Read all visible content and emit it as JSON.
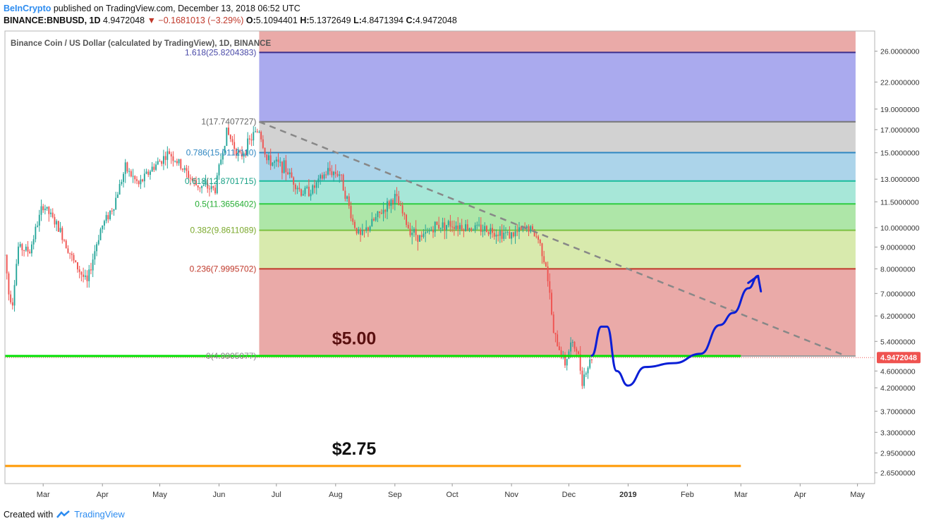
{
  "header": {
    "brand": "BeInCrypto",
    "published": "published on TradingView.com, December 13, 2018 06:52 UTC",
    "symbol": "BINANCE:BNBUSD, 1D",
    "last": "4.9472048",
    "change": "▼ −0.1681013 (−3.29%)",
    "o_label": "O:",
    "o": "5.1094401",
    "h_label": "H:",
    "h": "5.1372649",
    "l_label": "L:",
    "l": "4.8471394",
    "c_label": "C:",
    "c": "4.9472048"
  },
  "footer": {
    "created_with": "Created with",
    "brand": "TradingView"
  },
  "colors": {
    "up": "#26a69a",
    "down": "#ef5350",
    "trend": "#888888",
    "support_green": "#00e000",
    "support_orange": "#ff9800",
    "projection": "#0a1fd6",
    "price_tag": "#ef5350"
  },
  "chart_data": {
    "type": "candlestick",
    "title": "Binance Coin / US Dollar (calculated by TradingView), 1D, BINANCE",
    "y_scale": "log",
    "ylim": [
      2.5,
      29
    ],
    "y_ticks": [
      "26.0000000",
      "22.0000000",
      "19.0000000",
      "17.0000000",
      "15.0000000",
      "13.0000000",
      "11.5000000",
      "10.0000000",
      "9.0000000",
      "8.0000000",
      "7.0000000",
      "6.2000000",
      "5.4000000",
      "4.6000000",
      "4.2000000",
      "3.7000000",
      "3.3000000",
      "2.9500000",
      "2.6500000"
    ],
    "x_ticks": [
      "Mar",
      "Apr",
      "May",
      "Jun",
      "Jul",
      "Aug",
      "Sep",
      "Oct",
      "Nov",
      "Dec",
      "2019",
      "Feb",
      "Mar",
      "Apr",
      "May"
    ],
    "x_range": [
      "2018-02-09",
      "2019-05-10"
    ],
    "last_price_label": "4.9472048",
    "fib_start_date": "2018-06-22",
    "fib_end_date": "2019-04-30",
    "fib_levels": [
      {
        "label": "1.618(25.8204383)",
        "value": 25.82,
        "fill": "#aaaaee",
        "line": "#3a2d8c",
        "text_color": "#4a4aa8"
      },
      {
        "label": "1(17.7407727)",
        "value": 17.74,
        "fill": "#d2d2d2",
        "line": "#777777",
        "text_color": "#666666"
      },
      {
        "label": "0.786(15.0112110)",
        "value": 15.01,
        "fill": "#acd4ea",
        "line": "#2e86c1",
        "text_color": "#2e86c1"
      },
      {
        "label": "0.618(12.8701715)",
        "value": 12.87,
        "fill": "#a7e7d8",
        "line": "#1abc9c",
        "text_color": "#16a085"
      },
      {
        "label": "0.5(11.3656402)",
        "value": 11.37,
        "fill": "#aee6a8",
        "line": "#2ecc40",
        "text_color": "#27ae35"
      },
      {
        "label": "0.382(9.8611089)",
        "value": 9.86,
        "fill": "#d8eaad",
        "line": "#7bc142",
        "text_color": "#7aa82b"
      },
      {
        "label": "0.236(7.9995702)",
        "value": 8.0,
        "fill": "#eaaaa8",
        "line": "#c0392b",
        "text_color": "#c0392b"
      },
      {
        "label": "0(4.9905077)",
        "value": 4.99,
        "fill": "",
        "line": "#9e9e9e",
        "text_color": "#888888"
      }
    ],
    "top_band_fill": "#eaaaa8",
    "annotations": [
      {
        "text": "$5.00",
        "value": 5.0
      },
      {
        "text": "$2.75",
        "value": 2.75
      }
    ],
    "support_lines": [
      {
        "value": 4.99,
        "from": "2018-02-09",
        "to": "2019-03-01",
        "color": "#00e000"
      },
      {
        "value": 2.75,
        "from": "2018-02-09",
        "to": "2019-03-01",
        "color": "#ff9800"
      }
    ],
    "trendline": {
      "from": [
        "2018-06-22",
        17.74
      ],
      "to": [
        "2019-04-25",
        4.99
      ]
    },
    "projection_path": [
      [
        "2018-12-13",
        5.0
      ],
      [
        "2018-12-18",
        5.85
      ],
      [
        "2018-12-21",
        5.85
      ],
      [
        "2018-12-26",
        4.6
      ],
      [
        "2019-01-01",
        4.25
      ],
      [
        "2019-01-10",
        4.7
      ],
      [
        "2019-01-25",
        4.8
      ],
      [
        "2019-02-08",
        5.05
      ],
      [
        "2019-02-18",
        5.9
      ],
      [
        "2019-02-25",
        6.3
      ],
      [
        "2019-03-05",
        7.2
      ],
      [
        "2019-03-10",
        7.7
      ]
    ],
    "price_anchors": [
      [
        "2018-02-09",
        8.6
      ],
      [
        "2018-02-11",
        7.0
      ],
      [
        "2018-02-13",
        6.7
      ],
      [
        "2018-02-16",
        9.0
      ],
      [
        "2018-02-22",
        8.8
      ],
      [
        "2018-03-01",
        11.3
      ],
      [
        "2018-03-10",
        9.8
      ],
      [
        "2018-03-17",
        8.3
      ],
      [
        "2018-03-24",
        7.4
      ],
      [
        "2018-03-31",
        9.9
      ],
      [
        "2018-04-07",
        11.3
      ],
      [
        "2018-04-13",
        13.8
      ],
      [
        "2018-04-20",
        12.6
      ],
      [
        "2018-04-27",
        13.8
      ],
      [
        "2018-05-06",
        15.0
      ],
      [
        "2018-05-14",
        13.6
      ],
      [
        "2018-05-20",
        12.6
      ],
      [
        "2018-05-30",
        12.3
      ],
      [
        "2018-06-05",
        16.8
      ],
      [
        "2018-06-12",
        14.6
      ],
      [
        "2018-06-19",
        16.5
      ],
      [
        "2018-06-22",
        17.0
      ],
      [
        "2018-06-26",
        14.4
      ],
      [
        "2018-07-05",
        13.9
      ],
      [
        "2018-07-14",
        12.1
      ],
      [
        "2018-07-20",
        12.3
      ],
      [
        "2018-07-28",
        13.6
      ],
      [
        "2018-08-03",
        13.4
      ],
      [
        "2018-08-10",
        10.3
      ],
      [
        "2018-08-14",
        9.5
      ],
      [
        "2018-08-22",
        10.5
      ],
      [
        "2018-09-01",
        11.8
      ],
      [
        "2018-09-08",
        10.0
      ],
      [
        "2018-09-15",
        9.4
      ],
      [
        "2018-09-22",
        10.1
      ],
      [
        "2018-10-01",
        10.2
      ],
      [
        "2018-10-11",
        10.0
      ],
      [
        "2018-10-20",
        9.9
      ],
      [
        "2018-11-01",
        9.6
      ],
      [
        "2018-11-10",
        10.0
      ],
      [
        "2018-11-15",
        9.4
      ],
      [
        "2018-11-19",
        8.2
      ],
      [
        "2018-11-23",
        5.6
      ],
      [
        "2018-11-29",
        4.8
      ],
      [
        "2018-12-02",
        5.3
      ],
      [
        "2018-12-05",
        5.2
      ],
      [
        "2018-12-08",
        4.4
      ],
      [
        "2018-12-13",
        4.95
      ]
    ]
  }
}
